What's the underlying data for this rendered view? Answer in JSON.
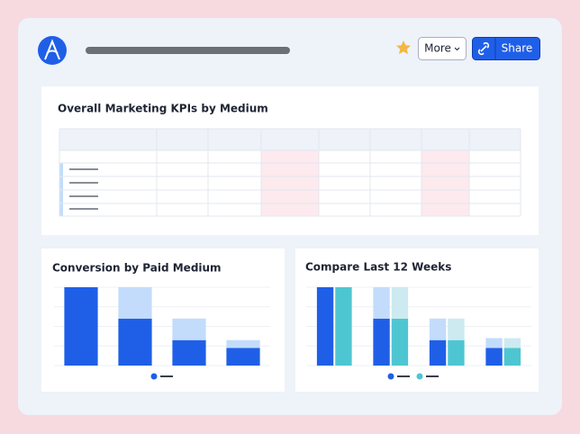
{
  "header": {
    "more_button": "More",
    "share_button": "Share"
  },
  "kpi_card": {
    "title": "Overall Marketing KPIs by Medium"
  },
  "chart_data": [
    {
      "type": "bar",
      "title": "Conversion by Paid Medium",
      "stacked": true,
      "grid": true,
      "ylim": [
        0,
        4
      ],
      "yticks": [
        0,
        1,
        2,
        3,
        4
      ],
      "series": [
        {
          "color": "#1f5fe8",
          "stack": "a",
          "values": [
            4,
            2.4,
            1.3,
            0.9
          ]
        },
        {
          "color": "#c3dcfb",
          "stack": "a",
          "values": [
            0,
            1.6,
            1.1,
            0.4
          ]
        }
      ]
    },
    {
      "type": "bar",
      "title": "Compare Last 12 Weeks",
      "stacked": true,
      "grid": true,
      "ylim": [
        0,
        4
      ],
      "yticks": [
        0,
        1,
        2,
        3,
        4
      ],
      "series": [
        {
          "color": "#1f5fe8",
          "stack": "a",
          "values": [
            4,
            2.4,
            1.3,
            0.9
          ]
        },
        {
          "color": "#c3dcfb",
          "stack": "a",
          "values": [
            0,
            1.6,
            1.1,
            0.5
          ]
        },
        {
          "color": "#4ec6d2",
          "stack": "b",
          "values": [
            4,
            2.4,
            1.3,
            0.9
          ]
        },
        {
          "color": "#cdeaf0",
          "stack": "b",
          "values": [
            0,
            1.6,
            1.1,
            0.5
          ]
        }
      ]
    }
  ]
}
